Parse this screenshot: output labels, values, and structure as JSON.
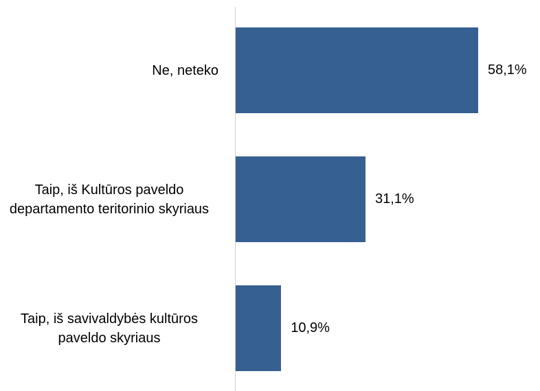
{
  "chart_data": {
    "type": "bar",
    "orientation": "horizontal",
    "categories": [
      "Ne, neteko",
      "Taip, iš Kultūros paveldo departamento teritorinio skyriaus",
      "Taip, iš savivaldybės kultūros paveldo skyriaus"
    ],
    "values": [
      58.1,
      31.1,
      10.9
    ],
    "value_labels": [
      "58,1%",
      "31,1%",
      "10,9%"
    ],
    "color": "#376092"
  }
}
